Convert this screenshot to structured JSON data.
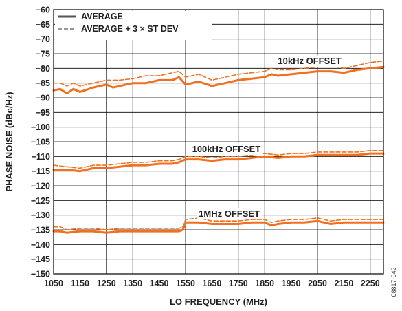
{
  "chart_data": {
    "type": "line",
    "xlabel": "LO FREQUENCY (MHz)",
    "ylabel": "PHASE NOISE (dBc/Hz)",
    "xlim": [
      1050,
      2300
    ],
    "ylim": [
      -150,
      -60
    ],
    "xticks": [
      1050,
      1150,
      1250,
      1350,
      1450,
      1550,
      1650,
      1750,
      1850,
      1950,
      2050,
      2150,
      2250
    ],
    "yticks": [
      -150,
      -145,
      -140,
      -135,
      -130,
      -125,
      -120,
      -115,
      -110,
      -105,
      -100,
      -95,
      -90,
      -85,
      -80,
      -75,
      -70,
      -65,
      -60
    ],
    "grid": true,
    "legend": {
      "placement": "top-left",
      "entries": [
        {
          "label": "AVERAGE",
          "style": "solid",
          "color": "#555555"
        },
        {
          "label": "AVERAGE + 3 × ST DEV",
          "style": "dashed",
          "color": "#777777"
        }
      ]
    },
    "series_color": "#f07020",
    "annotations": [
      {
        "text": "10kHz OFFSET",
        "x": 1900,
        "y": -77.5
      },
      {
        "text": "100kHz OFFSET",
        "x": 1575,
        "y": -107.5
      },
      {
        "text": "1MHz OFFSET",
        "x": 1600,
        "y": -129.5
      }
    ],
    "figure_id": "08817-042",
    "series": [
      {
        "name": "10kHz OFFSET AVERAGE",
        "style": "solid",
        "x": [
          1050,
          1075,
          1100,
          1125,
          1150,
          1200,
          1250,
          1275,
          1300,
          1350,
          1400,
          1450,
          1500,
          1525,
          1550,
          1600,
          1650,
          1700,
          1750,
          1800,
          1850,
          1875,
          1900,
          1950,
          2000,
          2050,
          2100,
          2150,
          2200,
          2250,
          2300
        ],
        "y": [
          -87.5,
          -87,
          -88.5,
          -87,
          -88,
          -86.5,
          -85.5,
          -86.5,
          -86,
          -85,
          -85,
          -84,
          -84,
          -83,
          -85.5,
          -84.5,
          -86,
          -85,
          -84,
          -83.5,
          -83,
          -82,
          -82.5,
          -82,
          -81.5,
          -81,
          -81,
          -81.5,
          -80.5,
          -80,
          -79.5
        ]
      },
      {
        "name": "10kHz OFFSET AVERAGE + 3 × ST DEV",
        "style": "dashed",
        "x": [
          1050,
          1075,
          1100,
          1125,
          1150,
          1200,
          1250,
          1300,
          1350,
          1400,
          1450,
          1500,
          1525,
          1550,
          1600,
          1650,
          1700,
          1750,
          1800,
          1850,
          1875,
          1900,
          1950,
          2000,
          2050,
          2100,
          2150,
          2200,
          2250,
          2300
        ],
        "y": [
          -85,
          -85,
          -86,
          -85,
          -86,
          -85,
          -84,
          -84,
          -83.5,
          -82.5,
          -82.5,
          -81.5,
          -81,
          -83,
          -82,
          -84,
          -83,
          -82,
          -81.5,
          -81,
          -80,
          -80.5,
          -80.5,
          -80,
          -79.5,
          -79,
          -80,
          -79,
          -78,
          -77.5
        ]
      },
      {
        "name": "100kHz OFFSET AVERAGE",
        "style": "solid",
        "x": [
          1050,
          1100,
          1150,
          1200,
          1250,
          1300,
          1350,
          1400,
          1450,
          1500,
          1525,
          1550,
          1600,
          1650,
          1700,
          1750,
          1800,
          1850,
          1900,
          1950,
          2000,
          2050,
          2100,
          2150,
          2200,
          2250,
          2300
        ],
        "y": [
          -114.5,
          -114.5,
          -115,
          -114,
          -114,
          -113.5,
          -113,
          -113,
          -112.5,
          -112.5,
          -112,
          -111,
          -111,
          -111.5,
          -111,
          -111,
          -110.5,
          -110,
          -110.5,
          -110,
          -110,
          -109.5,
          -109.5,
          -109.5,
          -109.5,
          -109,
          -109
        ]
      },
      {
        "name": "100kHz OFFSET AVERAGE + 3 × ST DEV",
        "style": "dashed",
        "x": [
          1050,
          1100,
          1150,
          1200,
          1250,
          1300,
          1350,
          1400,
          1450,
          1500,
          1525,
          1550,
          1600,
          1650,
          1700,
          1750,
          1800,
          1850,
          1900,
          1950,
          2000,
          2050,
          2100,
          2150,
          2200,
          2250,
          2300
        ],
        "y": [
          -113,
          -113.5,
          -114,
          -113,
          -113,
          -112.5,
          -112,
          -112,
          -111.5,
          -111.5,
          -111,
          -110,
          -110,
          -110.5,
          -110,
          -110,
          -109.5,
          -109,
          -109.5,
          -109,
          -109,
          -108.5,
          -108.5,
          -108.5,
          -108.5,
          -108,
          -108
        ]
      },
      {
        "name": "1MHz OFFSET AVERAGE",
        "style": "solid",
        "x": [
          1050,
          1075,
          1100,
          1150,
          1200,
          1250,
          1300,
          1350,
          1400,
          1450,
          1500,
          1525,
          1540,
          1550,
          1600,
          1650,
          1700,
          1750,
          1800,
          1850,
          1875,
          1900,
          1950,
          2000,
          2050,
          2100,
          2150,
          2200,
          2250,
          2300
        ],
        "y": [
          -135.5,
          -135.5,
          -136,
          -135.5,
          -135.5,
          -136,
          -135.5,
          -135.5,
          -135.5,
          -135.5,
          -135.5,
          -135.5,
          -135,
          -132.5,
          -132.5,
          -133,
          -133,
          -133,
          -132.5,
          -132.5,
          -133.5,
          -133,
          -132.5,
          -132.5,
          -132,
          -133,
          -132.5,
          -132.5,
          -132.5,
          -132.5
        ]
      },
      {
        "name": "1MHz OFFSET AVERAGE + 3 × ST DEV",
        "style": "dashed",
        "x": [
          1050,
          1075,
          1100,
          1150,
          1200,
          1250,
          1300,
          1350,
          1400,
          1450,
          1500,
          1525,
          1540,
          1550,
          1600,
          1650,
          1700,
          1750,
          1800,
          1850,
          1875,
          1900,
          1950,
          2000,
          2050,
          2100,
          2150,
          2200,
          2250,
          2300
        ],
        "y": [
          -134,
          -134,
          -135,
          -134.5,
          -134.5,
          -135,
          -134.5,
          -134.5,
          -134.5,
          -134.5,
          -134.5,
          -134.5,
          -134,
          -131.5,
          -131,
          -132,
          -132,
          -132,
          -131.5,
          -131.5,
          -132.5,
          -132,
          -131.5,
          -131.5,
          -131,
          -132,
          -131.5,
          -131.5,
          -131.5,
          -131.5
        ]
      }
    ]
  }
}
